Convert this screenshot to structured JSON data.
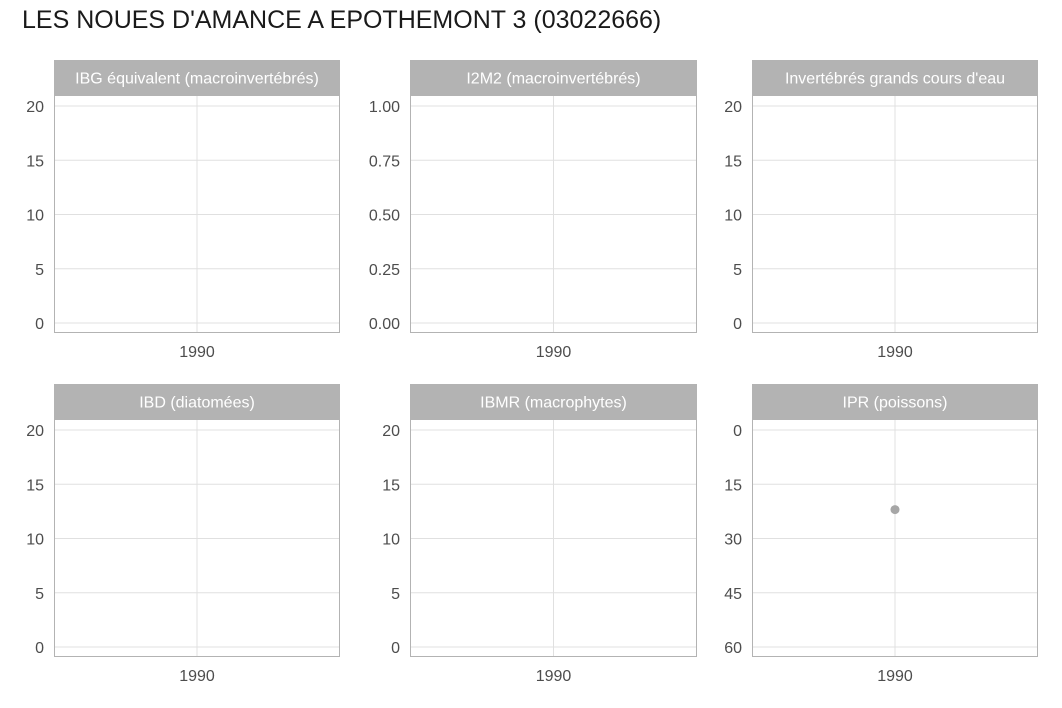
{
  "title": "LES NOUES D'AMANCE A EPOTHEMONT 3 (03022666)",
  "colors": {
    "strip": "#b3b3b3",
    "panel_border": "#b3b3b3",
    "grid": "#e0e0e0",
    "point": "#a6a6a6",
    "tick_text": "#4d4d4d"
  },
  "chart_data": [
    {
      "type": "scatter",
      "title": "IBG équivalent (macroinvertébrés)",
      "x_ticks": [
        "1990"
      ],
      "y_ticks": [
        "0",
        "5",
        "10",
        "15",
        "20"
      ],
      "ylim": [
        0,
        20
      ],
      "y_reversed": false,
      "points": []
    },
    {
      "type": "scatter",
      "title": "I2M2 (macroinvertébrés)",
      "x_ticks": [
        "1990"
      ],
      "y_ticks": [
        "0.00",
        "0.25",
        "0.50",
        "0.75",
        "1.00"
      ],
      "ylim": [
        0,
        1
      ],
      "y_reversed": false,
      "points": []
    },
    {
      "type": "scatter",
      "title": "Invertébrés grands cours d'eau",
      "x_ticks": [
        "1990"
      ],
      "y_ticks": [
        "0",
        "5",
        "10",
        "15",
        "20"
      ],
      "ylim": [
        0,
        20
      ],
      "y_reversed": false,
      "points": []
    },
    {
      "type": "scatter",
      "title": "IBD (diatomées)",
      "x_ticks": [
        "1990"
      ],
      "y_ticks": [
        "0",
        "5",
        "10",
        "15",
        "20"
      ],
      "ylim": [
        0,
        20
      ],
      "y_reversed": false,
      "points": []
    },
    {
      "type": "scatter",
      "title": "IBMR (macrophytes)",
      "x_ticks": [
        "1990"
      ],
      "y_ticks": [
        "0",
        "5",
        "10",
        "15",
        "20"
      ],
      "ylim": [
        0,
        20
      ],
      "y_reversed": false,
      "points": []
    },
    {
      "type": "scatter",
      "title": "IPR (poissons)",
      "x_ticks": [
        "1990"
      ],
      "y_ticks": [
        "0",
        "15",
        "30",
        "45",
        "60"
      ],
      "ylim": [
        0,
        60
      ],
      "y_reversed": true,
      "points": [
        {
          "x": "1990",
          "y": 22
        }
      ]
    }
  ]
}
